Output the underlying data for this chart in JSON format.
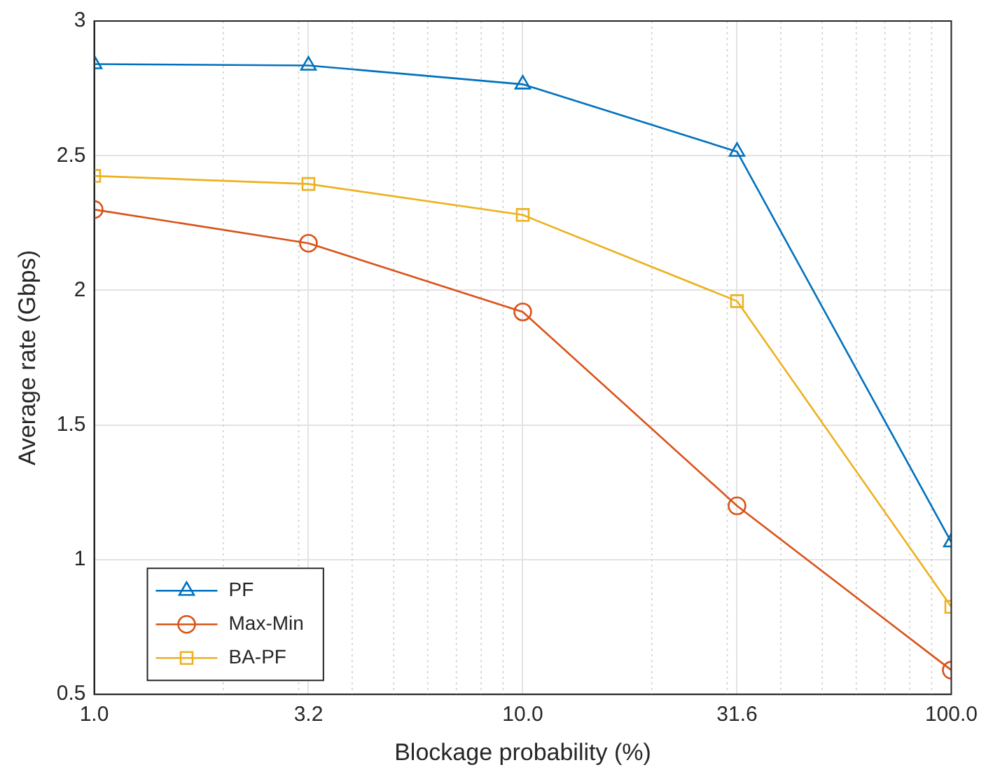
{
  "chart_data": {
    "type": "line",
    "xlabel": "Blockage probability (%)",
    "ylabel": "Average rate (Gbps)",
    "x": [
      1,
      3.162,
      10,
      31.62,
      100
    ],
    "series": [
      {
        "name": "PF",
        "color": "#0072bd",
        "marker": "triangle",
        "values": [
          2.84,
          2.835,
          2.765,
          2.515,
          1.065
        ]
      },
      {
        "name": "Max-Min",
        "color": "#d95319",
        "marker": "circle",
        "values": [
          2.3,
          2.175,
          1.92,
          1.2,
          0.59
        ]
      },
      {
        "name": "BA-PF",
        "color": "#edb120",
        "marker": "square",
        "values": [
          2.425,
          2.395,
          2.28,
          1.96,
          0.825
        ]
      }
    ],
    "log": "x",
    "xlim": [
      1,
      100
    ],
    "xticks": [
      {
        "value": 1,
        "label": "1.0"
      },
      {
        "value": 3.162,
        "label": "3.2"
      },
      {
        "value": 10,
        "label": "10.0"
      },
      {
        "value": 31.62,
        "label": "31.6"
      },
      {
        "value": 100,
        "label": "100.0"
      }
    ],
    "ylim": [
      0.5,
      3
    ],
    "yticks": [
      0.5,
      1,
      1.5,
      2,
      2.5,
      3
    ],
    "grid": true,
    "legend": "bottom left",
    "line_style": "solid"
  }
}
